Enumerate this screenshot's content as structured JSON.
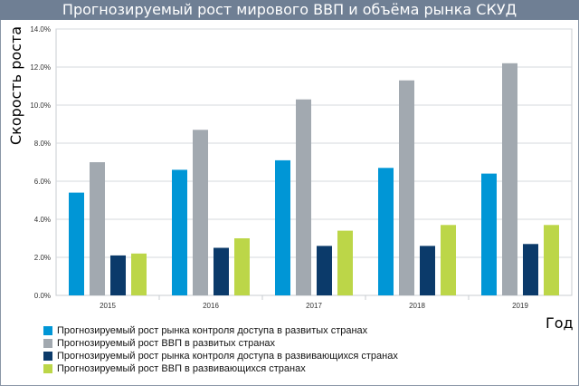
{
  "chart_data": {
    "type": "bar",
    "title": "Прогнозируемый рост мирового ВВП и объёма рынка СКУД",
    "xlabel": "Год",
    "ylabel": "Скорость роста",
    "ylim": [
      0,
      14
    ],
    "yticks": [
      "0.0%",
      "2.0%",
      "4.0%",
      "6.0%",
      "8.0%",
      "10.0%",
      "12.0%",
      "14.0%"
    ],
    "categories": [
      "2015",
      "2016",
      "2017",
      "2018",
      "2019"
    ],
    "grid": true,
    "legend": "bottom-left",
    "series": [
      {
        "name": "Прогнозируемый рост рынка контроля доступа в развитых странах",
        "color": "#0096d6",
        "values": [
          5.4,
          6.6,
          7.1,
          6.7,
          6.4
        ]
      },
      {
        "name": "Прогнозируемый рост ВВП в развитых странах",
        "color": "#a2a9b0",
        "values": [
          7.0,
          8.7,
          10.3,
          11.3,
          12.2
        ]
      },
      {
        "name": "Прогнозируемый рост рынка контроля доступа в развивающихся странах",
        "color": "#0b3a6a",
        "values": [
          2.1,
          2.5,
          2.6,
          2.6,
          2.7
        ]
      },
      {
        "name": "Прогнозируемый рост ВВП в развивающихся странах",
        "color": "#bcd648",
        "values": [
          2.2,
          3.0,
          3.4,
          3.7,
          3.7
        ]
      }
    ]
  }
}
